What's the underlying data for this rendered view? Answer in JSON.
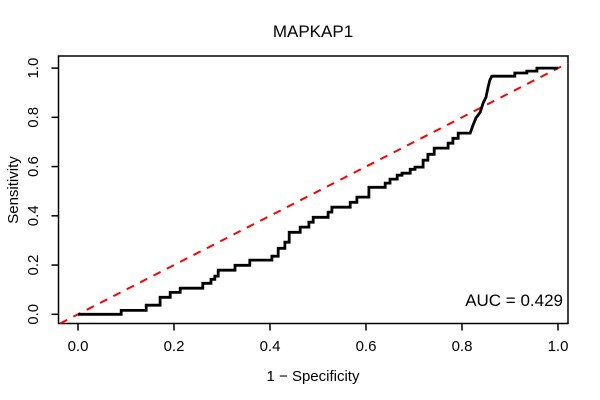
{
  "chart_data": {
    "type": "line",
    "title": "MAPKAP1",
    "xlabel": "1 − Specificity",
    "ylabel": "Sensitivity",
    "xlim": [
      0,
      1
    ],
    "ylim": [
      0,
      1
    ],
    "grid": false,
    "legend": "none",
    "x_ticks": {
      "values": [
        0.0,
        0.2,
        0.4,
        0.6,
        0.8,
        1.0
      ],
      "labels": [
        "0.0",
        "0.2",
        "0.4",
        "0.6",
        "0.8",
        "1.0"
      ]
    },
    "y_ticks": {
      "values": [
        0.0,
        0.2,
        0.4,
        0.6,
        0.8,
        1.0
      ],
      "labels": [
        "0.0",
        "0.2",
        "0.4",
        "0.6",
        "0.8",
        "1.0"
      ]
    },
    "annotations": [
      {
        "text": "AUC = 0.429",
        "x": 0.97,
        "y": 0.05,
        "align": "right"
      }
    ],
    "series": [
      {
        "name": "ROC curve",
        "color": "#000000",
        "style": "solid",
        "width": 2.8,
        "points": [
          [
            0.0,
            0.0
          ],
          [
            0.09,
            0.0
          ],
          [
            0.09,
            0.016
          ],
          [
            0.142,
            0.016
          ],
          [
            0.142,
            0.037
          ],
          [
            0.171,
            0.037
          ],
          [
            0.171,
            0.069
          ],
          [
            0.192,
            0.069
          ],
          [
            0.192,
            0.089
          ],
          [
            0.213,
            0.089
          ],
          [
            0.213,
            0.106
          ],
          [
            0.26,
            0.106
          ],
          [
            0.26,
            0.126
          ],
          [
            0.277,
            0.126
          ],
          [
            0.277,
            0.142
          ],
          [
            0.285,
            0.142
          ],
          [
            0.285,
            0.155
          ],
          [
            0.292,
            0.155
          ],
          [
            0.292,
            0.179
          ],
          [
            0.327,
            0.179
          ],
          [
            0.327,
            0.199
          ],
          [
            0.358,
            0.199
          ],
          [
            0.358,
            0.22
          ],
          [
            0.404,
            0.22
          ],
          [
            0.404,
            0.236
          ],
          [
            0.417,
            0.236
          ],
          [
            0.417,
            0.268
          ],
          [
            0.431,
            0.268
          ],
          [
            0.431,
            0.293
          ],
          [
            0.44,
            0.293
          ],
          [
            0.44,
            0.333
          ],
          [
            0.463,
            0.333
          ],
          [
            0.463,
            0.354
          ],
          [
            0.481,
            0.354
          ],
          [
            0.481,
            0.374
          ],
          [
            0.49,
            0.374
          ],
          [
            0.49,
            0.394
          ],
          [
            0.521,
            0.394
          ],
          [
            0.521,
            0.415
          ],
          [
            0.529,
            0.415
          ],
          [
            0.529,
            0.435
          ],
          [
            0.567,
            0.435
          ],
          [
            0.567,
            0.455
          ],
          [
            0.581,
            0.455
          ],
          [
            0.581,
            0.476
          ],
          [
            0.606,
            0.476
          ],
          [
            0.606,
            0.516
          ],
          [
            0.64,
            0.516
          ],
          [
            0.64,
            0.533
          ],
          [
            0.65,
            0.533
          ],
          [
            0.65,
            0.549
          ],
          [
            0.665,
            0.549
          ],
          [
            0.665,
            0.565
          ],
          [
            0.675,
            0.565
          ],
          [
            0.675,
            0.573
          ],
          [
            0.692,
            0.573
          ],
          [
            0.692,
            0.589
          ],
          [
            0.702,
            0.589
          ],
          [
            0.702,
            0.598
          ],
          [
            0.719,
            0.598
          ],
          [
            0.719,
            0.626
          ],
          [
            0.729,
            0.626
          ],
          [
            0.729,
            0.65
          ],
          [
            0.742,
            0.65
          ],
          [
            0.742,
            0.675
          ],
          [
            0.771,
            0.675
          ],
          [
            0.771,
            0.695
          ],
          [
            0.781,
            0.695
          ],
          [
            0.781,
            0.715
          ],
          [
            0.792,
            0.715
          ],
          [
            0.792,
            0.736
          ],
          [
            0.817,
            0.736
          ],
          [
            0.823,
            0.768
          ],
          [
            0.829,
            0.797
          ],
          [
            0.838,
            0.821
          ],
          [
            0.844,
            0.858
          ],
          [
            0.85,
            0.882
          ],
          [
            0.854,
            0.919
          ],
          [
            0.858,
            0.951
          ],
          [
            0.862,
            0.967
          ],
          [
            0.91,
            0.967
          ],
          [
            0.91,
            0.98
          ],
          [
            0.935,
            0.98
          ],
          [
            0.935,
            0.988
          ],
          [
            0.956,
            0.988
          ],
          [
            0.956,
            1.0
          ],
          [
            1.0,
            1.0
          ]
        ]
      },
      {
        "name": "chance diagonal",
        "color": "#FF0000",
        "style": "dashed",
        "width": 2,
        "extend": true,
        "points": [
          [
            0,
            0
          ],
          [
            1,
            1
          ]
        ]
      }
    ]
  }
}
